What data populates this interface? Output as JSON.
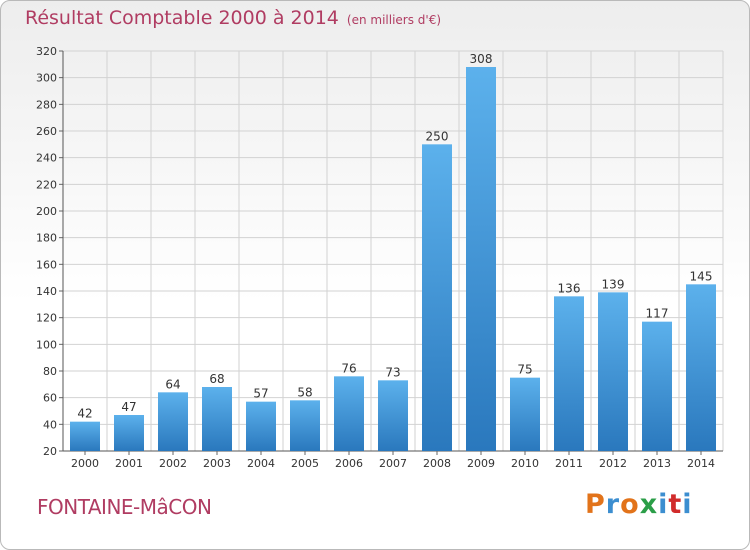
{
  "chart_data": {
    "type": "bar",
    "title": "Résultat Comptable 2000 à 2014",
    "subtitle": "(en milliers d'€)",
    "categories": [
      "2000",
      "2001",
      "2002",
      "2003",
      "2004",
      "2005",
      "2006",
      "2007",
      "2008",
      "2009",
      "2010",
      "2011",
      "2012",
      "2013",
      "2014"
    ],
    "values": [
      42,
      47,
      64,
      68,
      57,
      58,
      76,
      73,
      250,
      308,
      75,
      136,
      139,
      117,
      145
    ],
    "ylim": [
      20,
      320
    ],
    "yticks": [
      20,
      40,
      60,
      80,
      100,
      120,
      140,
      160,
      180,
      200,
      220,
      240,
      260,
      280,
      300,
      320
    ],
    "grid": true,
    "bar_color": "#4a9fe0"
  },
  "footer": {
    "commune": "FONTAINE-MâCON",
    "logo": "Proxiti"
  },
  "colors": {
    "title": "#b03c62",
    "logo_letters": [
      "#e2731a",
      "#3c8ed0",
      "#e2731a",
      "#2b9e48",
      "#3c8ed0",
      "#d12b2b",
      "#3c8ed0"
    ]
  }
}
